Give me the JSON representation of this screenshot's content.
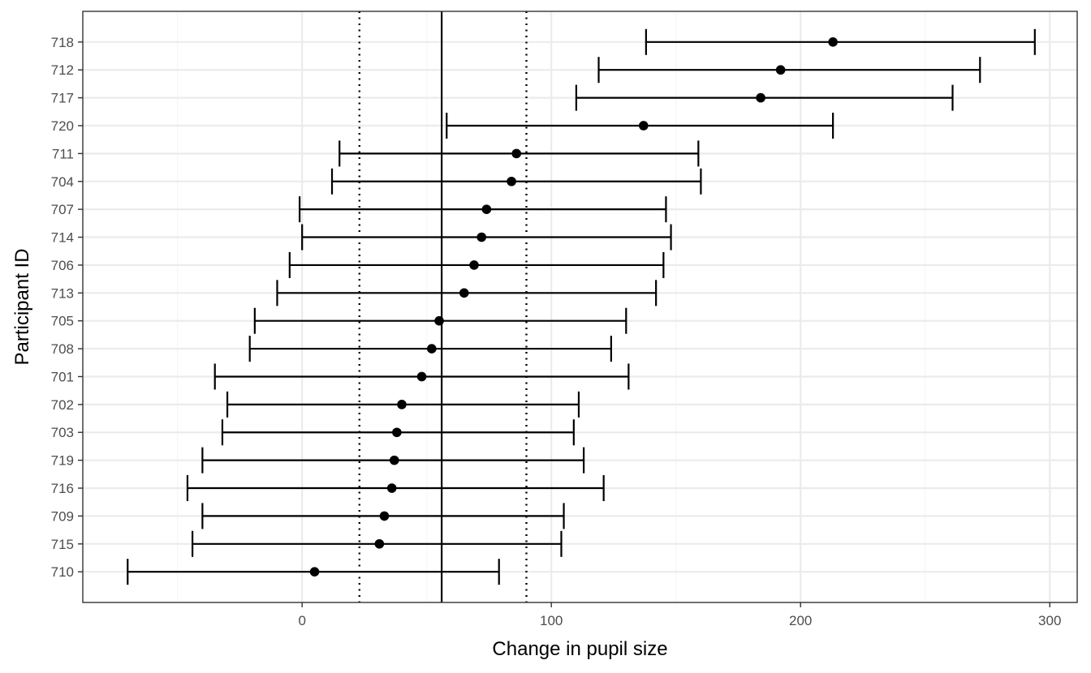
{
  "chart_data": {
    "type": "errorbar",
    "xlabel": "Change in pupil size",
    "ylabel": "Participant ID",
    "xlim": [
      -88,
      311
    ],
    "x_ticks": [
      0,
      100,
      200,
      300
    ],
    "x_minor_ticks": [
      -50,
      50,
      150,
      250
    ],
    "grid": true,
    "reference_lines": [
      {
        "x": 56,
        "style": "solid"
      },
      {
        "x": 23,
        "style": "dotted"
      },
      {
        "x": 90,
        "style": "dotted"
      }
    ],
    "categories": [
      "718",
      "712",
      "717",
      "720",
      "711",
      "704",
      "707",
      "714",
      "706",
      "713",
      "705",
      "708",
      "701",
      "702",
      "703",
      "719",
      "716",
      "709",
      "715",
      "710"
    ],
    "estimates": [
      213,
      192,
      184,
      137,
      86,
      84,
      74,
      72,
      69,
      65,
      55,
      52,
      48,
      40,
      38,
      37,
      36,
      33,
      31,
      5
    ],
    "lower": [
      138,
      119,
      110,
      58,
      15,
      12,
      -1,
      0,
      -5,
      -10,
      -19,
      -21,
      -35,
      -30,
      -32,
      -40,
      -46,
      -40,
      -44,
      -70
    ],
    "upper": [
      294,
      272,
      261,
      213,
      159,
      160,
      146,
      148,
      145,
      142,
      130,
      124,
      131,
      111,
      109,
      113,
      121,
      105,
      104,
      79
    ],
    "colors": {
      "panel_border": "#333333",
      "grid_major": "#ebebeb",
      "grid_minor": "#f5f5f5",
      "marks": "#000000",
      "tick_text": "#4d4d4d"
    }
  }
}
